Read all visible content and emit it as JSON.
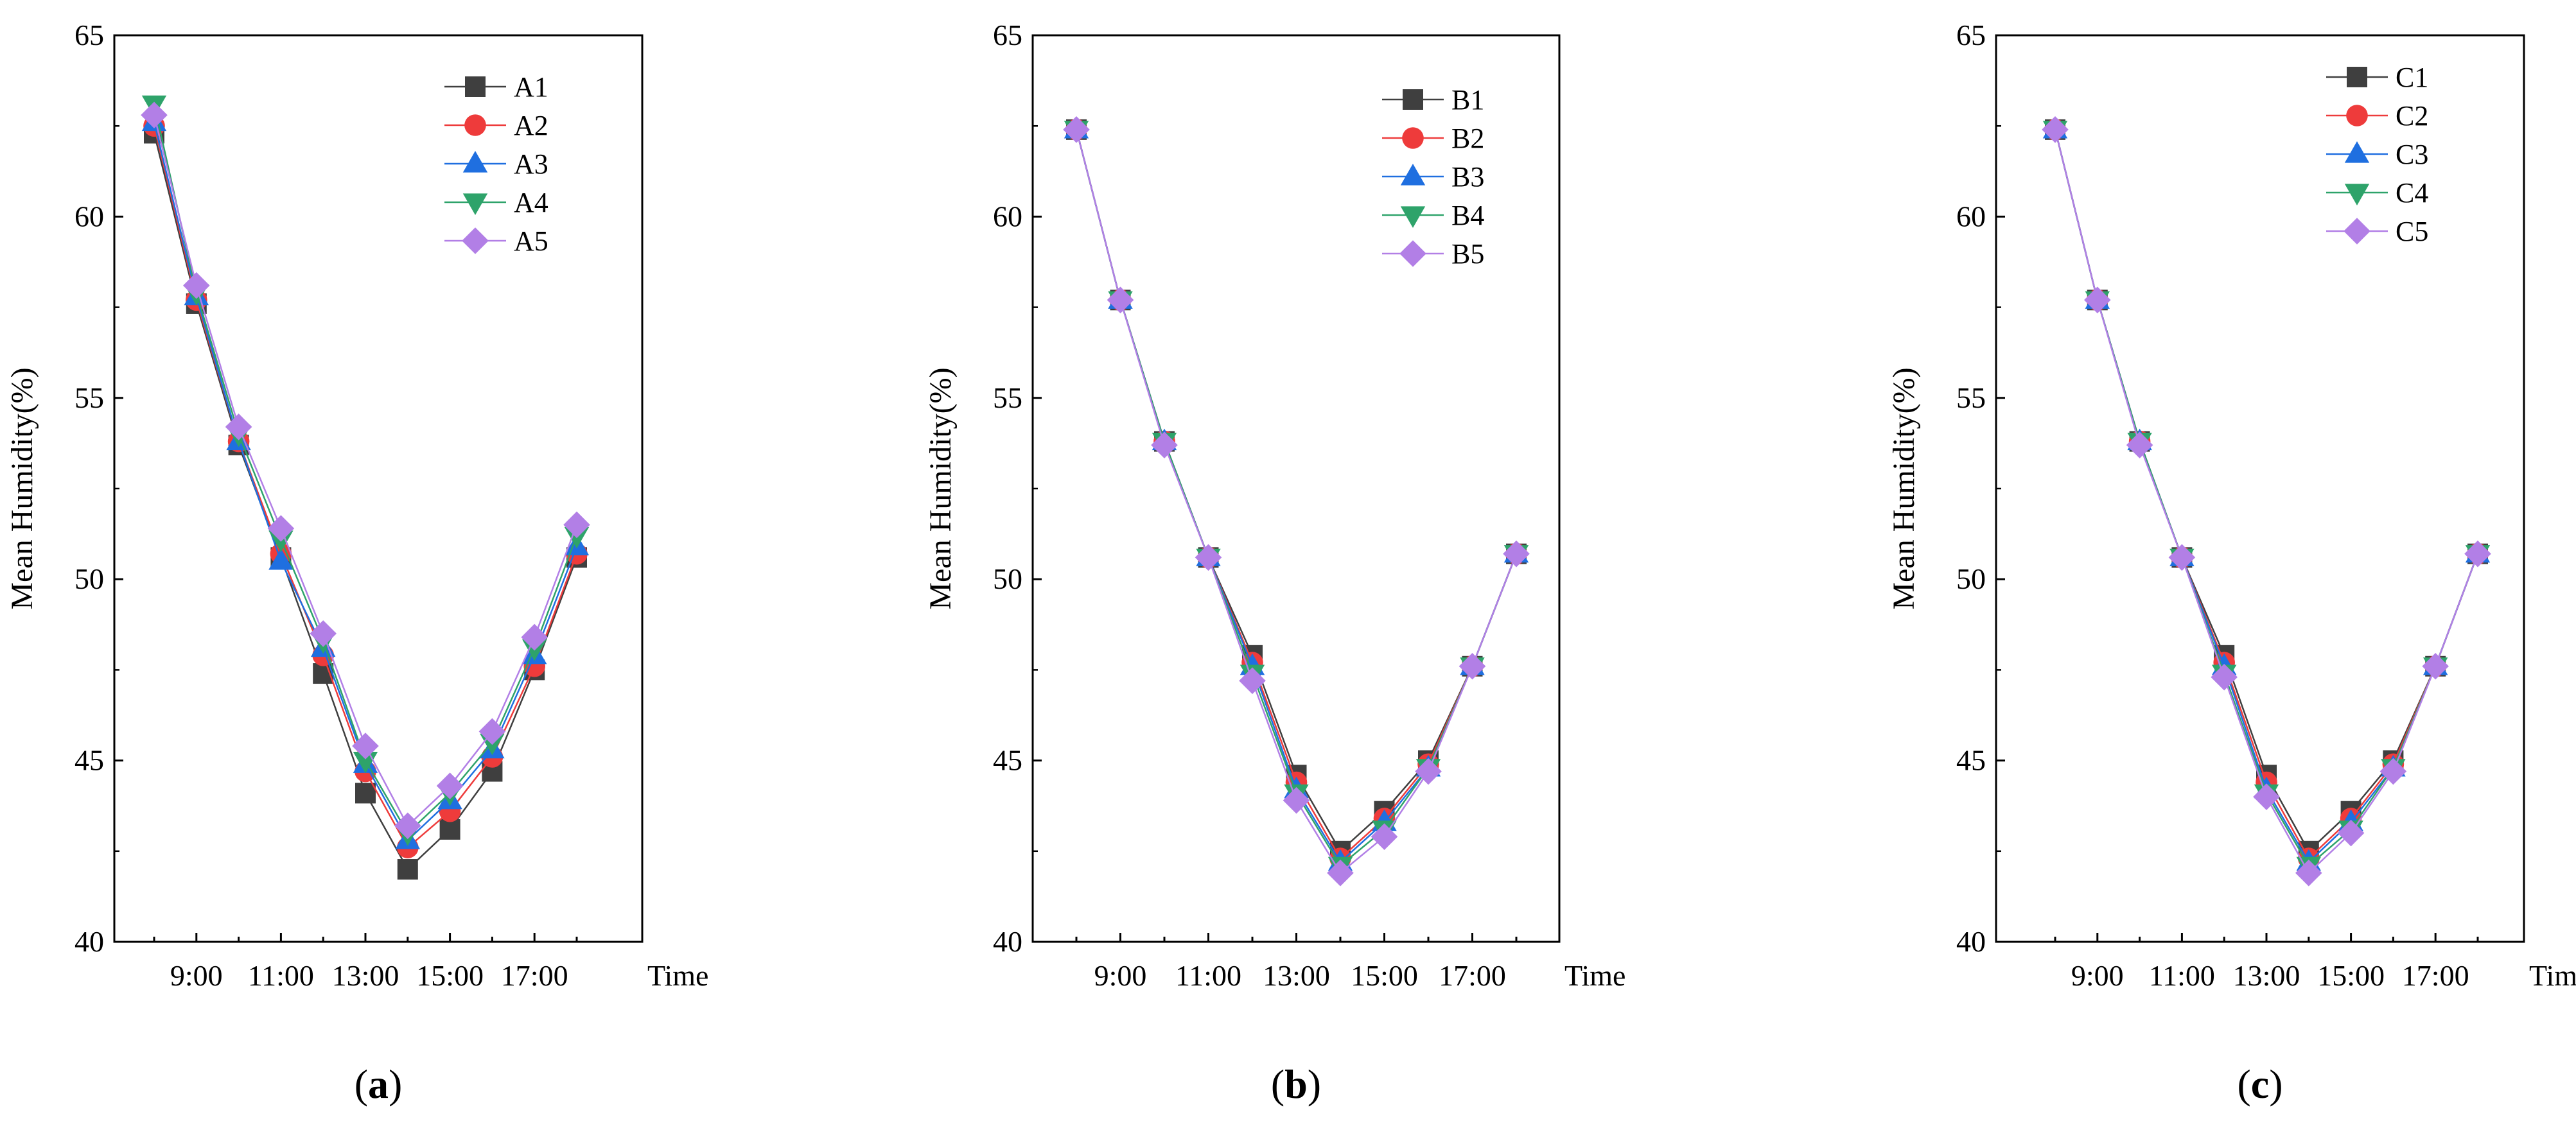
{
  "figure": {
    "time_axis_label": "Time",
    "hours": [
      8,
      9,
      10,
      11,
      12,
      13,
      14,
      15,
      16,
      17,
      18
    ]
  },
  "series_colors": [
    "#3f3f3f",
    "#ee3b3b",
    "#1f6fe0",
    "#2ea36a",
    "#b27fe6"
  ],
  "series_markers": [
    "square",
    "circle",
    "triangle-up",
    "triangle-down",
    "diamond"
  ],
  "chart_data": [
    {
      "type": "line",
      "panel_label": "(a)",
      "ylabel": "Mean Humidity(%)",
      "xlabel": "Time",
      "ylim": [
        40,
        65
      ],
      "yticks": [
        40,
        45,
        50,
        55,
        60,
        65
      ],
      "xticks": [
        "9:00",
        "11:00",
        "13:00",
        "15:00",
        "17:00"
      ],
      "legend_placement": "top-right",
      "x": [
        "8:00",
        "9:00",
        "10:00",
        "11:00",
        "12:00",
        "13:00",
        "14:00",
        "15:00",
        "16:00",
        "17:00",
        "18:00"
      ],
      "series": [
        {
          "name": "A1",
          "values": [
            62.3,
            57.6,
            53.7,
            50.6,
            47.4,
            44.1,
            42.0,
            43.1,
            44.7,
            47.5,
            50.6
          ]
        },
        {
          "name": "A2",
          "values": [
            62.5,
            57.7,
            53.8,
            50.7,
            47.9,
            44.7,
            42.6,
            43.6,
            45.1,
            47.6,
            50.7
          ]
        },
        {
          "name": "A3",
          "values": [
            62.6,
            57.8,
            53.8,
            50.5,
            48.1,
            44.9,
            42.8,
            43.9,
            45.3,
            47.9,
            50.9
          ]
        },
        {
          "name": "A4",
          "values": [
            63.1,
            57.9,
            54.0,
            51.1,
            48.3,
            45.0,
            43.0,
            44.1,
            45.5,
            48.1,
            51.2
          ]
        },
        {
          "name": "A5",
          "values": [
            62.8,
            58.1,
            54.2,
            51.4,
            48.5,
            45.4,
            43.2,
            44.3,
            45.8,
            48.4,
            51.5
          ]
        }
      ]
    },
    {
      "type": "line",
      "panel_label": "(b)",
      "ylabel": "Mean Humidity(%)",
      "xlabel": "Time",
      "ylim": [
        40,
        65
      ],
      "yticks": [
        40,
        45,
        50,
        55,
        60,
        65
      ],
      "xticks": [
        "9:00",
        "11:00",
        "13:00",
        "15:00",
        "17:00"
      ],
      "legend_placement": "top-right",
      "x": [
        "8:00",
        "9:00",
        "10:00",
        "11:00",
        "12:00",
        "13:00",
        "14:00",
        "15:00",
        "16:00",
        "17:00",
        "18:00"
      ],
      "series": [
        {
          "name": "B1",
          "values": [
            62.4,
            57.7,
            53.8,
            50.6,
            47.9,
            44.6,
            42.5,
            43.6,
            45.0,
            47.6,
            50.7
          ]
        },
        {
          "name": "B2",
          "values": [
            62.4,
            57.7,
            53.8,
            50.6,
            47.7,
            44.4,
            42.3,
            43.4,
            44.9,
            47.6,
            50.7
          ]
        },
        {
          "name": "B3",
          "values": [
            62.4,
            57.7,
            53.8,
            50.6,
            47.6,
            44.2,
            42.2,
            43.3,
            44.8,
            47.6,
            50.7
          ]
        },
        {
          "name": "B4",
          "values": [
            62.4,
            57.7,
            53.8,
            50.6,
            47.4,
            44.1,
            42.1,
            43.1,
            44.8,
            47.6,
            50.7
          ]
        },
        {
          "name": "B5",
          "values": [
            62.4,
            57.7,
            53.7,
            50.6,
            47.2,
            43.9,
            41.9,
            42.9,
            44.7,
            47.6,
            50.7
          ]
        }
      ]
    },
    {
      "type": "line",
      "panel_label": "(c)",
      "ylabel": "Mean Humidity(%)",
      "xlabel": "Time",
      "ylim": [
        40,
        65
      ],
      "yticks": [
        40,
        45,
        50,
        55,
        60,
        65
      ],
      "xticks": [
        "9:00",
        "11:00",
        "13:00",
        "15:00",
        "17:00"
      ],
      "legend_placement": "top-right",
      "x": [
        "8:00",
        "9:00",
        "10:00",
        "11:00",
        "12:00",
        "13:00",
        "14:00",
        "15:00",
        "16:00",
        "17:00",
        "18:00"
      ],
      "series": [
        {
          "name": "C1",
          "values": [
            62.4,
            57.7,
            53.8,
            50.6,
            47.9,
            44.6,
            42.5,
            43.6,
            45.0,
            47.6,
            50.7
          ]
        },
        {
          "name": "C2",
          "values": [
            62.4,
            57.7,
            53.8,
            50.6,
            47.7,
            44.4,
            42.3,
            43.4,
            44.9,
            47.6,
            50.7
          ]
        },
        {
          "name": "C3",
          "values": [
            62.4,
            57.7,
            53.8,
            50.6,
            47.6,
            44.2,
            42.2,
            43.3,
            44.8,
            47.6,
            50.7
          ]
        },
        {
          "name": "C4",
          "values": [
            62.4,
            57.7,
            53.8,
            50.6,
            47.4,
            44.1,
            42.1,
            43.1,
            44.8,
            47.6,
            50.7
          ]
        },
        {
          "name": "C5",
          "values": [
            62.4,
            57.7,
            53.7,
            50.6,
            47.3,
            44.0,
            41.9,
            43.0,
            44.7,
            47.6,
            50.7
          ]
        }
      ]
    }
  ]
}
